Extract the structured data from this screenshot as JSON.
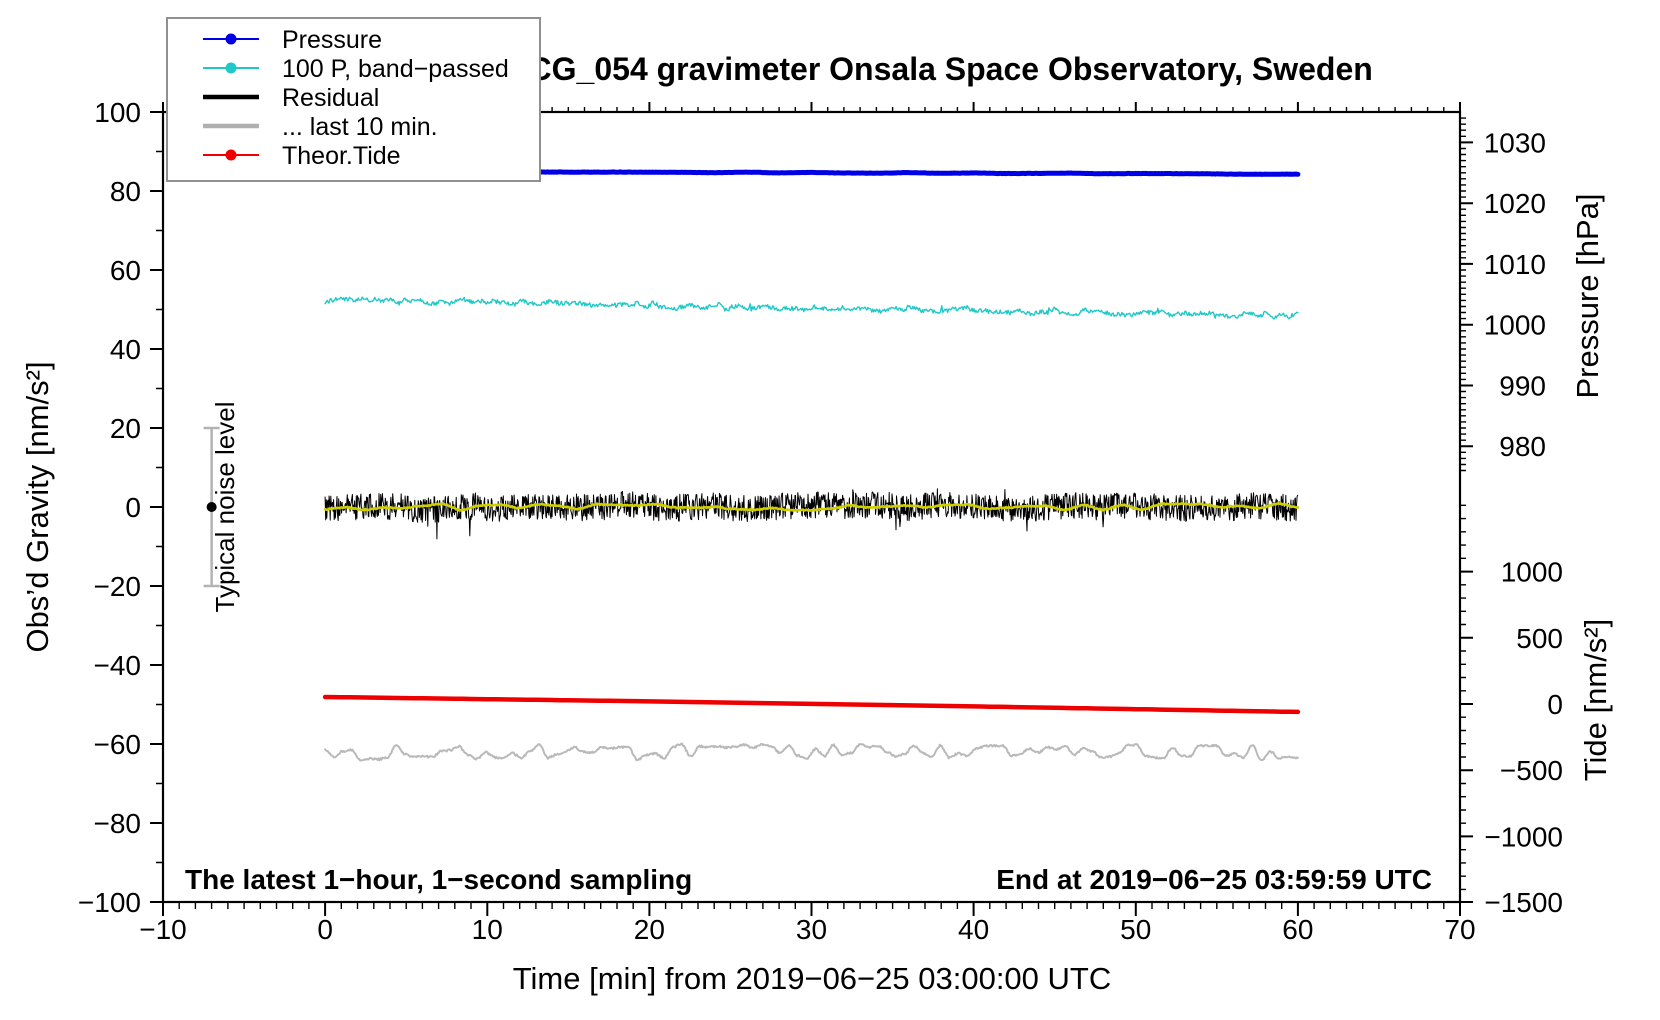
{
  "title": "SCG_054 gravimeter Onsala Space Observatory, Sweden",
  "legend": {
    "items": [
      {
        "label": "Pressure",
        "color": "#0000e6",
        "marker": "dot-line"
      },
      {
        "label": "100 P, band−passed",
        "color": "#20c8c8",
        "marker": "dot-line"
      },
      {
        "label": "Residual",
        "color": "#000000",
        "marker": "thick-line"
      },
      {
        "label": "... last 10 min.",
        "color": "#b0b0b0",
        "marker": "thick-line"
      },
      {
        "label": "Theor.Tide",
        "color": "#ee0000",
        "marker": "dot-line"
      }
    ]
  },
  "annotations": {
    "sampling_note": "The latest 1−hour, 1−second sampling",
    "end_note": "End at 2019−06−25 03:59:59 UTC"
  },
  "chart_data": {
    "type": "line",
    "title": "SCG_054 gravimeter Onsala Space Observatory, Sweden",
    "x_axis": {
      "label": "Time [min] from 2019−06−25 03:00:00 UTC",
      "range": [
        -10,
        70
      ],
      "major_ticks": [
        -10,
        0,
        10,
        20,
        30,
        40,
        50,
        60,
        70
      ],
      "minor_step": 1
    },
    "y_gravity": {
      "label": "Obs’d Gravity [nm/s²]",
      "range": [
        -100,
        100
      ],
      "major_ticks": [
        100,
        80,
        60,
        40,
        20,
        0,
        -20,
        -40,
        -60,
        -80,
        -100
      ],
      "minor_step": 10
    },
    "y_pressure": {
      "label": "Pressure [hPa]",
      "range": [
        905,
        1035
      ],
      "major_ticks": [
        1030,
        1020,
        1010,
        1000,
        990,
        980
      ],
      "minor_step": 1,
      "minor_range": [
        976,
        1034
      ]
    },
    "y_tide": {
      "label": "Tide [nm/s²]",
      "range": [
        -1495,
        4470
      ],
      "major_ticks": [
        1000,
        500,
        0,
        -500,
        -1000,
        -1500
      ],
      "minor_step": 100,
      "minor_range": [
        -1400,
        1500
      ]
    },
    "series": [
      {
        "name": "Pressure",
        "axis": "pressure",
        "color": "#0000e6",
        "width": 5,
        "anchors": [
          [
            0,
            1025.1
          ],
          [
            25,
            1025.05
          ],
          [
            45,
            1024.9
          ],
          [
            60,
            1024.8
          ]
        ],
        "smooth": {
          "amp": 0.06,
          "period": 2.0
        },
        "jitter": 0.025,
        "dt": 0.1
      },
      {
        "name": "100 P, band−passed",
        "axis": "gravity",
        "color": "#20c8c8",
        "width": 1.4,
        "anchors": [
          [
            0,
            52.4
          ],
          [
            12,
            51.8
          ],
          [
            25,
            50.6
          ],
          [
            40,
            49.8
          ],
          [
            52,
            49.0
          ],
          [
            60,
            48.3
          ]
        ],
        "smooth": {
          "amp": 0.65,
          "period": 0.45
        },
        "jitter": 0.55,
        "spike": {
          "prob": 0.012,
          "mult": 2.2
        },
        "dt": 0.06
      },
      {
        "name": "Residual",
        "axis": "gravity",
        "color": "#000000",
        "width": 1,
        "anchors": [
          [
            0,
            0
          ],
          [
            60,
            0
          ]
        ],
        "smooth": {
          "amp": 0.6,
          "period": 1.5
        },
        "jitter": 3.4,
        "spike": {
          "prob": 0.02,
          "mult": 1.8
        },
        "dt": 0.035
      },
      {
        "name": "Residual low-passed",
        "axis": "gravity",
        "color": "#cfcf00",
        "width": 2.6,
        "anchors": [
          [
            0,
            0
          ],
          [
            60,
            0
          ]
        ],
        "smooth": {
          "amp": 0.9,
          "period": 1.2
        },
        "jitter": 0.15,
        "dt": 0.08
      },
      {
        "name": "... last 10 min.",
        "axis": "gravity",
        "color": "#b9b9b9",
        "width": 2,
        "anchors": [
          [
            0,
            -62
          ],
          [
            60,
            -62
          ]
        ],
        "smooth": {
          "amp": 2.1,
          "period": 0.55
        },
        "jitter": 0.25,
        "dt": 0.06
      },
      {
        "name": "Theor.Tide",
        "axis": "tide",
        "color": "#ee0000",
        "width": 4.5,
        "anchors": [
          [
            0,
            53
          ],
          [
            20,
            20
          ],
          [
            40,
            -18
          ],
          [
            60,
            -60
          ]
        ],
        "smooth": {
          "amp": 0,
          "period": 1
        },
        "jitter": 0,
        "dt": 0.5
      }
    ],
    "noise_bar": {
      "time": -7,
      "center": 0,
      "half_width": 20,
      "label": "Typical noise level",
      "color": "#b3b3b3"
    }
  }
}
